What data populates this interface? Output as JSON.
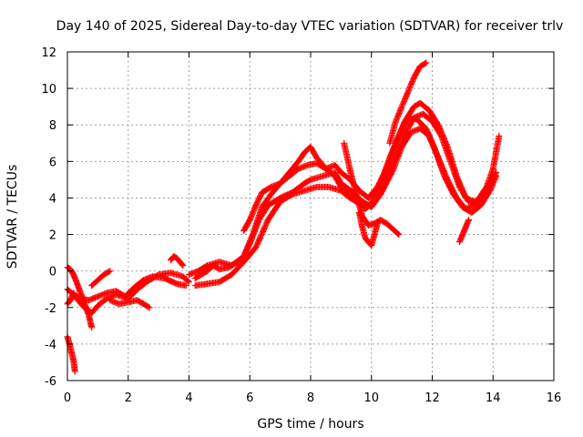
{
  "chart_data": {
    "type": "scatter",
    "title": "Day 140 of 2025, Sidereal Day-to-day VTEC variation (SDTVAR) for receiver trlv",
    "xlabel": "GPS time / hours",
    "ylabel": "SDTVAR / TECUs",
    "xlim": [
      0,
      16
    ],
    "ylim": [
      -6,
      12
    ],
    "xticks": [
      "0",
      "2",
      "4",
      "6",
      "8",
      "10",
      "12",
      "14",
      "16"
    ],
    "yticks": [
      "-6",
      "-4",
      "-2",
      "0",
      "2",
      "4",
      "6",
      "8",
      "10",
      "12"
    ],
    "grid": true,
    "marker": "plus",
    "color": "#ff0000",
    "series": [
      {
        "x": [
          0.0,
          0.1,
          0.2,
          0.3,
          0.5,
          0.8,
          1.0,
          1.3,
          1.6,
          2.0,
          2.3,
          2.6,
          3.0,
          3.4,
          3.8,
          4.0
        ],
        "y": [
          -1.8,
          -1.6,
          -1.2,
          -1.5,
          -1.9,
          -2.3,
          -1.9,
          -1.5,
          -1.3,
          -1.5,
          -1.0,
          -0.6,
          -0.2,
          -0.1,
          -0.3,
          -0.6
        ]
      },
      {
        "x": [
          0.0,
          0.2,
          0.4,
          0.7,
          1.0,
          1.3,
          1.6,
          1.9,
          2.2,
          2.5,
          2.8,
          3.2,
          3.6,
          3.9
        ],
        "y": [
          -1.0,
          -1.3,
          -1.5,
          -1.6,
          -1.4,
          -1.2,
          -1.1,
          -1.4,
          -0.9,
          -0.5,
          -0.3,
          -0.4,
          -0.7,
          -0.8
        ]
      },
      {
        "x": [
          0.0,
          0.1,
          0.2,
          0.3,
          0.5,
          0.7,
          0.8
        ],
        "y": [
          0.2,
          0.1,
          -0.2,
          -0.6,
          -1.5,
          -2.4,
          -3.1
        ]
      },
      {
        "x": [
          0.8,
          1.0,
          1.2,
          1.4
        ],
        "y": [
          -0.8,
          -0.5,
          -0.2,
          0.0
        ]
      },
      {
        "x": [
          1.4,
          1.7,
          2.0,
          2.3,
          2.5,
          2.7
        ],
        "y": [
          -1.6,
          -1.8,
          -1.7,
          -1.6,
          -1.8,
          -2.0
        ]
      },
      {
        "x": [
          0.0,
          0.1,
          0.2,
          0.25
        ],
        "y": [
          -3.6,
          -4.2,
          -4.9,
          -5.5
        ]
      },
      {
        "x": [
          3.4,
          3.5,
          3.6,
          3.7,
          3.8
        ],
        "y": [
          0.6,
          0.8,
          0.7,
          0.5,
          0.3
        ]
      },
      {
        "x": [
          4.2,
          4.4,
          4.6,
          4.8,
          5.0,
          5.3,
          5.6,
          5.8,
          6.0,
          6.3,
          6.6,
          7.0,
          7.4,
          7.8,
          8.0,
          8.4,
          8.8,
          9.0,
          9.4,
          9.7,
          10.0,
          10.3,
          10.7,
          11.0,
          11.3,
          11.6,
          11.9,
          12.2,
          12.5,
          12.8,
          13.1,
          13.4,
          13.7,
          14.0
        ],
        "y": [
          -0.4,
          -0.2,
          0.0,
          0.3,
          0.1,
          0.2,
          0.5,
          0.8,
          1.5,
          2.8,
          3.6,
          4.0,
          4.3,
          4.8,
          5.0,
          5.2,
          5.4,
          4.8,
          4.3,
          3.8,
          3.5,
          4.2,
          5.5,
          6.8,
          7.6,
          7.8,
          7.4,
          6.2,
          5.0,
          4.0,
          3.4,
          3.6,
          4.4,
          5.0
        ]
      },
      {
        "x": [
          4.2,
          4.6,
          5.0,
          5.4,
          5.8,
          6.2,
          6.6,
          7.0,
          7.4,
          7.8,
          8.2,
          8.6,
          9.0,
          9.3,
          9.6,
          9.8,
          10.0,
          10.3,
          10.6,
          10.9,
          11.2,
          11.5,
          11.8,
          12.1,
          12.4,
          12.7,
          13.0,
          13.3,
          13.6,
          13.9,
          14.1
        ],
        "y": [
          -0.8,
          -0.7,
          -0.6,
          -0.2,
          0.5,
          1.3,
          2.8,
          3.8,
          4.2,
          4.4,
          4.6,
          4.6,
          4.4,
          4.0,
          3.7,
          3.4,
          3.7,
          4.8,
          6.2,
          7.4,
          8.4,
          8.3,
          7.8,
          6.6,
          5.2,
          4.2,
          3.5,
          3.2,
          3.6,
          4.4,
          5.2
        ]
      },
      {
        "x": [
          4.0,
          4.3,
          4.6,
          5.0,
          5.4,
          5.8,
          6.1,
          6.4,
          6.7,
          7.0,
          7.3,
          7.6,
          7.9,
          8.2,
          8.5,
          8.8,
          9.0,
          9.3,
          9.6,
          9.9,
          10.2,
          10.5,
          10.8,
          11.1,
          11.4,
          11.7,
          12.0,
          12.3,
          12.6,
          12.9,
          13.2,
          13.5,
          13.8,
          14.1
        ],
        "y": [
          -0.2,
          0.0,
          0.3,
          0.5,
          0.3,
          0.8,
          2.0,
          3.5,
          4.2,
          4.8,
          5.2,
          5.6,
          5.8,
          5.9,
          5.6,
          5.2,
          4.6,
          4.2,
          3.9,
          3.6,
          4.0,
          5.0,
          6.3,
          7.5,
          8.4,
          8.6,
          8.2,
          7.4,
          6.0,
          4.6,
          3.8,
          3.6,
          4.2,
          5.4
        ]
      },
      {
        "x": [
          5.8,
          6.0,
          6.2,
          6.4,
          6.7,
          7.0,
          7.3,
          7.6,
          7.8,
          8.0,
          8.2,
          8.5,
          8.8,
          9.0,
          9.3,
          9.6,
          9.9,
          10.2,
          10.5,
          10.8,
          11.1,
          11.4,
          11.6,
          11.9,
          12.2,
          12.5,
          12.8,
          13.1,
          13.4,
          13.7,
          14.0,
          14.2
        ],
        "y": [
          2.2,
          2.8,
          3.6,
          4.3,
          4.6,
          4.8,
          5.4,
          6.0,
          6.5,
          6.8,
          6.2,
          5.6,
          5.8,
          5.4,
          5.0,
          4.4,
          4.0,
          4.6,
          5.6,
          7.0,
          8.2,
          9.0,
          9.2,
          8.8,
          8.0,
          6.8,
          5.2,
          4.0,
          3.8,
          4.2,
          5.6,
          7.4
        ]
      },
      {
        "x": [
          9.1,
          9.3,
          9.5,
          9.7,
          9.9,
          10.1,
          10.3,
          10.5,
          10.7,
          10.9
        ],
        "y": [
          7.0,
          5.5,
          4.2,
          3.0,
          2.5,
          2.6,
          2.8,
          2.6,
          2.3,
          2.0
        ]
      },
      {
        "x": [
          9.6,
          9.7,
          9.8,
          9.9,
          10.0,
          10.1,
          10.2
        ],
        "y": [
          3.2,
          2.4,
          1.8,
          1.6,
          1.4,
          2.0,
          2.6
        ]
      },
      {
        "x": [
          10.6,
          10.8,
          11.0,
          11.2,
          11.4,
          11.6,
          11.8
        ],
        "y": [
          7.0,
          8.2,
          9.0,
          9.8,
          10.6,
          11.2,
          11.4
        ]
      },
      {
        "x": [
          12.9,
          13.0,
          13.1,
          13.2
        ],
        "y": [
          1.6,
          2.0,
          2.4,
          2.8
        ]
      }
    ]
  }
}
